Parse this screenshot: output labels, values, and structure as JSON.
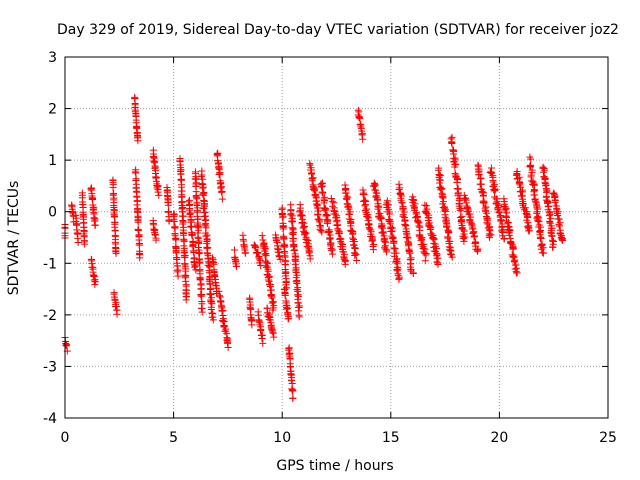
{
  "chart_data": {
    "type": "scatter",
    "title": "Day 329 of 2019, Sidereal Day-to-day VTEC variation (SDTVAR) for receiver joz2",
    "xlabel": "GPS time / hours",
    "ylabel": "SDTVAR / TECUs",
    "xlim": [
      0,
      25
    ],
    "ylim": [
      -4,
      3
    ],
    "xticks": [
      0,
      5,
      10,
      15,
      20,
      25
    ],
    "yticks": [
      -4,
      -3,
      -2,
      -1,
      0,
      1,
      2,
      3
    ],
    "xtick_labels": [
      "0",
      "5",
      "10",
      "15",
      "20",
      "25"
    ],
    "ytick_labels": [
      "-4",
      "-3",
      "-2",
      "-1",
      "0",
      "1",
      "2",
      "3"
    ],
    "grid": true,
    "marker": "+",
    "color": "#ff0000",
    "segments": [
      [
        0.0,
        0.0,
        -0.3,
        -0.5
      ],
      [
        0.0,
        0.1,
        -2.45,
        -2.65
      ],
      [
        0.3,
        0.4,
        0.15,
        -0.15
      ],
      [
        0.5,
        0.6,
        -0.1,
        -0.55
      ],
      [
        0.8,
        0.9,
        0.35,
        -0.65
      ],
      [
        1.2,
        1.4,
        0.5,
        -0.3
      ],
      [
        1.2,
        1.4,
        -0.95,
        -1.4
      ],
      [
        2.2,
        2.35,
        0.6,
        -0.8
      ],
      [
        2.25,
        2.4,
        -1.6,
        -1.95
      ],
      [
        3.2,
        3.35,
        2.25,
        1.35
      ],
      [
        3.25,
        3.45,
        0.8,
        -0.9
      ],
      [
        4.05,
        4.3,
        1.15,
        0.35
      ],
      [
        4.05,
        4.2,
        -0.2,
        -0.55
      ],
      [
        4.7,
        4.8,
        0.5,
        -0.2
      ],
      [
        5.0,
        5.2,
        0.0,
        -1.2
      ],
      [
        5.3,
        5.6,
        1.05,
        -1.7
      ],
      [
        5.7,
        6.0,
        0.2,
        -1.1
      ],
      [
        6.0,
        6.3,
        0.8,
        -1.9
      ],
      [
        6.3,
        6.8,
        0.75,
        -2.1
      ],
      [
        6.8,
        7.0,
        -0.9,
        -1.6
      ],
      [
        7.0,
        7.25,
        1.15,
        0.3
      ],
      [
        7.1,
        7.5,
        -1.6,
        -2.6
      ],
      [
        7.8,
        7.9,
        -0.8,
        -1.1
      ],
      [
        8.2,
        8.3,
        -0.5,
        -0.8
      ],
      [
        8.5,
        8.6,
        -1.7,
        -2.2
      ],
      [
        8.7,
        9.0,
        -0.6,
        -1.0
      ],
      [
        8.9,
        9.1,
        -2.0,
        -2.5
      ],
      [
        9.1,
        9.6,
        -0.5,
        -1.9
      ],
      [
        9.3,
        9.6,
        -1.9,
        -2.4
      ],
      [
        9.7,
        9.9,
        -0.5,
        -0.9
      ],
      [
        10.0,
        10.2,
        0.1,
        -1.5
      ],
      [
        10.1,
        10.3,
        -1.5,
        -2.1
      ],
      [
        10.3,
        10.5,
        -2.6,
        -3.6
      ],
      [
        10.4,
        10.8,
        0.1,
        -2.0
      ],
      [
        10.8,
        11.3,
        0.1,
        -0.9
      ],
      [
        11.3,
        11.8,
        0.9,
        -0.4
      ],
      [
        11.8,
        12.3,
        0.6,
        -0.8
      ],
      [
        12.3,
        12.9,
        0.2,
        -1.0
      ],
      [
        12.9,
        13.4,
        0.5,
        -0.9
      ],
      [
        13.5,
        13.7,
        1.95,
        1.45
      ],
      [
        13.7,
        14.2,
        0.4,
        -0.7
      ],
      [
        14.2,
        14.8,
        0.6,
        -0.8
      ],
      [
        14.8,
        15.4,
        0.2,
        -1.3
      ],
      [
        15.4,
        16.0,
        0.5,
        -1.2
      ],
      [
        16.0,
        16.6,
        0.3,
        -0.9
      ],
      [
        16.6,
        17.2,
        0.1,
        -1.0
      ],
      [
        17.2,
        17.8,
        0.8,
        -0.9
      ],
      [
        17.8,
        18.4,
        1.45,
        -0.6
      ],
      [
        18.4,
        19.0,
        0.3,
        -0.8
      ],
      [
        19.0,
        19.6,
        0.9,
        -0.5
      ],
      [
        19.6,
        20.2,
        0.8,
        -0.5
      ],
      [
        20.2,
        20.8,
        0.2,
        -1.2
      ],
      [
        20.8,
        21.4,
        0.8,
        -0.4
      ],
      [
        21.4,
        22.0,
        1.0,
        -0.8
      ],
      [
        22.0,
        22.5,
        0.9,
        -0.7
      ],
      [
        22.5,
        22.9,
        0.4,
        -0.6
      ]
    ]
  }
}
